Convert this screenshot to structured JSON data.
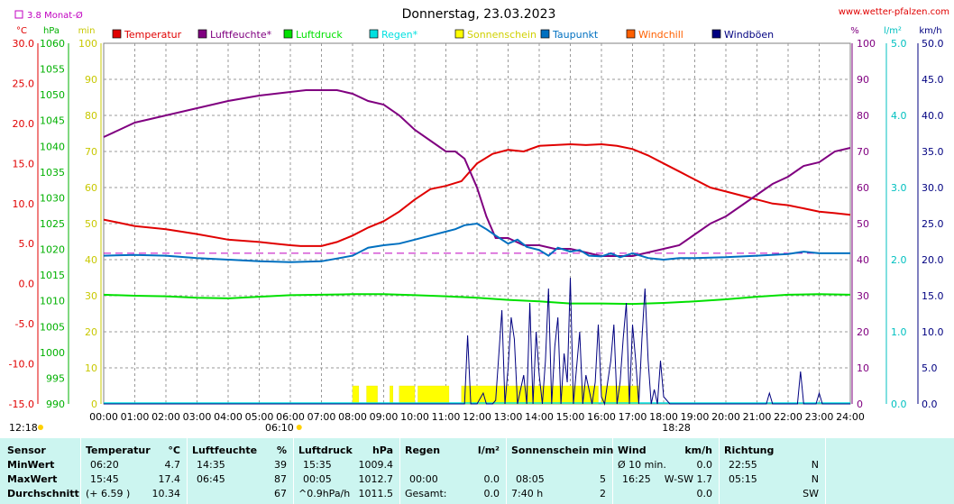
{
  "header": {
    "title": "Donnerstag, 23.03.2023",
    "site": "www.wetter-pfalzen.com",
    "monat_label": "3.8 Monat-Ø"
  },
  "units": {
    "temp": "°C",
    "pressure": "hPa",
    "minutes": "min",
    "percent": "%",
    "rain": "l/m²",
    "wind": "km/h"
  },
  "legend": [
    {
      "label": "Temperatur",
      "color": "#e00000"
    },
    {
      "label": "Luftfeuchte*",
      "color": "#800080"
    },
    {
      "label": "Luftdruck",
      "color": "#00e000"
    },
    {
      "label": "Regen*",
      "color": "#00e0e0"
    },
    {
      "label": "Sonnenschein",
      "color": "#ffff00"
    },
    {
      "label": "Taupunkt",
      "color": "#0070c0"
    },
    {
      "label": "Windchill",
      "color": "#ff6000"
    },
    {
      "label": "Windböen",
      "color": "#000080"
    }
  ],
  "chart_data": {
    "type": "line",
    "title": "Donnerstag, 23.03.2023",
    "x_ticks": [
      "00:00",
      "01:00",
      "02:00",
      "03:00",
      "04:00",
      "05:00",
      "06:00",
      "07:00",
      "08:00",
      "09:00",
      "10:00",
      "11:00",
      "12:00",
      "13:00",
      "14:00",
      "15:00",
      "16:00",
      "17:00",
      "18:00",
      "19:00",
      "20:00",
      "21:00",
      "22:00",
      "23:00",
      "24:00"
    ],
    "axes": {
      "temp": {
        "unit": "°C",
        "range": [
          -15,
          30
        ],
        "ticks": [
          "30.0",
          "25.0",
          "20.0",
          "15.0",
          "10.0",
          "5.0",
          "0.0",
          "-5.0",
          "-10.0",
          "-15.0"
        ]
      },
      "pressure": {
        "unit": "hPa",
        "range": [
          990,
          1060
        ],
        "ticks": [
          "1060",
          "1055",
          "1050",
          "1045",
          "1040",
          "1035",
          "1030",
          "1025",
          "1020",
          "1015",
          "1010",
          "1005",
          "1000",
          "995",
          "990"
        ]
      },
      "sun_minutes": {
        "unit": "min",
        "range": [
          0,
          100
        ],
        "ticks": [
          "100",
          "90",
          "80",
          "70",
          "60",
          "50",
          "40",
          "30",
          "20",
          "10",
          "0"
        ]
      },
      "humidity": {
        "unit": "%",
        "range": [
          0,
          100
        ],
        "ticks": [
          "100",
          "90",
          "80",
          "70",
          "60",
          "50",
          "40",
          "30",
          "20",
          "10",
          "0"
        ]
      },
      "rain": {
        "unit": "l/m²",
        "range": [
          0,
          5
        ],
        "ticks": [
          "5.0",
          "4.0",
          "3.0",
          "2.0",
          "1.0",
          "0.0"
        ]
      },
      "wind": {
        "unit": "km/h",
        "range": [
          0,
          50
        ],
        "ticks": [
          "50.0",
          "45.0",
          "40.0",
          "35.0",
          "30.0",
          "25.0",
          "20.0",
          "15.0",
          "10.0",
          "5.0",
          "0.0"
        ]
      }
    },
    "monthly_avg_temp": 3.8,
    "sunrise": "06:10",
    "sunset": "18:28",
    "local_time": "12:18",
    "series": [
      {
        "name": "Temperatur",
        "axis": "temp",
        "color": "#e00000",
        "x": [
          0,
          0.5,
          1,
          2,
          3,
          4,
          5,
          5.5,
          6,
          6.33,
          7,
          7.5,
          8,
          8.5,
          9,
          9.5,
          10,
          10.5,
          11,
          11.5,
          12,
          12.5,
          13,
          13.5,
          14,
          14.5,
          15,
          15.5,
          16,
          16.5,
          17,
          17.5,
          18,
          18.5,
          19,
          19.5,
          20,
          20.5,
          21,
          21.5,
          22,
          22.5,
          23,
          23.5,
          24
        ],
        "y": [
          8.0,
          7.6,
          7.2,
          6.8,
          6.2,
          5.5,
          5.2,
          5.0,
          4.8,
          4.7,
          4.7,
          5.2,
          6.0,
          7.0,
          7.8,
          9.0,
          10.5,
          11.8,
          12.2,
          12.8,
          15.0,
          16.2,
          16.7,
          16.5,
          17.2,
          17.3,
          17.4,
          17.3,
          17.4,
          17.2,
          16.8,
          16.0,
          15.0,
          14.0,
          13.0,
          12.0,
          11.5,
          11.0,
          10.5,
          10.0,
          9.8,
          9.4,
          9.0,
          8.8,
          8.6
        ]
      },
      {
        "name": "Luftfeuchte*",
        "axis": "humidity",
        "color": "#800080",
        "x": [
          0,
          0.5,
          1,
          1.5,
          2,
          3,
          4,
          5,
          5.5,
          6,
          6.5,
          7,
          7.5,
          8,
          8.5,
          9,
          9.5,
          10,
          10.5,
          11,
          11.3,
          11.6,
          12,
          12.3,
          12.6,
          13,
          13.5,
          14,
          14.5,
          15,
          15.5,
          16,
          16.5,
          17,
          17.5,
          18,
          18.5,
          19,
          19.5,
          20,
          20.5,
          21,
          21.5,
          22,
          22.5,
          23,
          23.5,
          24
        ],
        "y": [
          74,
          76,
          78,
          79,
          80,
          82,
          84,
          85.5,
          86,
          86.5,
          87,
          87,
          87,
          86,
          84,
          83,
          80,
          76,
          73,
          70,
          70,
          68,
          60,
          52,
          46,
          46,
          44,
          44,
          43,
          43,
          42,
          41,
          41,
          41,
          42,
          43,
          44,
          47,
          50,
          52,
          55,
          58,
          61,
          63,
          66,
          67,
          70,
          71
        ]
      },
      {
        "name": "Luftdruck",
        "axis": "pressure",
        "color": "#00e000",
        "x": [
          0,
          1,
          2,
          3,
          4,
          5,
          6,
          7,
          8,
          9,
          10,
          11,
          12,
          13,
          14,
          15,
          16,
          17,
          18,
          19,
          20,
          21,
          22,
          23,
          24
        ],
        "y": [
          1011.2,
          1011.0,
          1010.9,
          1010.6,
          1010.5,
          1010.8,
          1011.1,
          1011.2,
          1011.3,
          1011.3,
          1011.1,
          1010.9,
          1010.6,
          1010.2,
          1009.9,
          1009.5,
          1009.5,
          1009.4,
          1009.6,
          1009.9,
          1010.3,
          1010.8,
          1011.2,
          1011.3,
          1011.2
        ]
      },
      {
        "name": "Taupunkt",
        "axis": "temp",
        "color": "#0070c0",
        "x": [
          0,
          1,
          2,
          3,
          4,
          5,
          6,
          7,
          8,
          8.5,
          9,
          9.5,
          10,
          10.5,
          11,
          11.3,
          11.6,
          12,
          12.3,
          12.6,
          13,
          13.3,
          13.6,
          14,
          14.3,
          14.6,
          15,
          15.3,
          15.6,
          16,
          16.3,
          16.6,
          17,
          17.5,
          18,
          18.5,
          19,
          20,
          21,
          22,
          22.5,
          23,
          24
        ],
        "y": [
          3.5,
          3.6,
          3.5,
          3.2,
          3.0,
          2.8,
          2.7,
          2.8,
          3.5,
          4.5,
          4.8,
          5.0,
          5.5,
          6.0,
          6.5,
          6.8,
          7.3,
          7.5,
          6.8,
          6.0,
          5.0,
          5.5,
          4.6,
          4.2,
          3.5,
          4.5,
          4.0,
          4.2,
          3.5,
          3.4,
          3.8,
          3.3,
          3.8,
          3.2,
          3.0,
          3.2,
          3.2,
          3.3,
          3.5,
          3.7,
          4.0,
          3.8,
          3.8
        ]
      },
      {
        "name": "Windböen",
        "axis": "wind",
        "color": "#000080",
        "x": [
          0,
          11.6,
          11.7,
          11.8,
          12.0,
          12.2,
          12.3,
          12.5,
          12.6,
          12.8,
          12.9,
          13.0,
          13.1,
          13.2,
          13.3,
          13.4,
          13.5,
          13.6,
          13.7,
          13.8,
          13.9,
          14.0,
          14.1,
          14.2,
          14.3,
          14.4,
          14.5,
          14.6,
          14.7,
          14.8,
          14.9,
          15.0,
          15.1,
          15.2,
          15.3,
          15.4,
          15.5,
          15.6,
          15.7,
          15.8,
          15.9,
          16.0,
          16.1,
          16.2,
          16.3,
          16.4,
          16.5,
          16.6,
          16.7,
          16.8,
          16.9,
          17.0,
          17.1,
          17.2,
          17.3,
          17.4,
          17.5,
          17.6,
          17.7,
          17.8,
          17.9,
          18.0,
          18.2,
          20.5,
          21.3,
          21.4,
          21.5,
          21.6,
          22.2,
          22.3,
          22.4,
          22.5,
          22.6,
          22.8,
          22.9,
          23.0,
          23.1,
          23.2,
          24
        ],
        "y": [
          0,
          0,
          9.5,
          0,
          0,
          1.5,
          0,
          0,
          0.5,
          13,
          0,
          5,
          12,
          9,
          0,
          2,
          4,
          0,
          14,
          0,
          10,
          4,
          0,
          6,
          16,
          0,
          8,
          12,
          0,
          7,
          3,
          17.5,
          0,
          5,
          10,
          0,
          4,
          2,
          0,
          3,
          11,
          1,
          0,
          3,
          6,
          11,
          0,
          3,
          9,
          14,
          0,
          11,
          6,
          0,
          9,
          16,
          6,
          0,
          2,
          0,
          6,
          1,
          0,
          0,
          0,
          1.5,
          0,
          0,
          0,
          0,
          4.5,
          0,
          0,
          0,
          0,
          1.5,
          0,
          0,
          0
        ]
      }
    ],
    "sun_bars_minutes": [
      {
        "start": 8.0,
        "end": 8.2,
        "minutes": 5
      },
      {
        "start": 8.45,
        "end": 8.8,
        "minutes": 5
      },
      {
        "start": 9.2,
        "end": 9.3,
        "minutes": 5
      },
      {
        "start": 9.5,
        "end": 10.0,
        "minutes": 5
      },
      {
        "start": 10.1,
        "end": 11.1,
        "minutes": 5
      },
      {
        "start": 11.5,
        "end": 15.9,
        "minutes": 5
      },
      {
        "start": 16.0,
        "end": 17.2,
        "minutes": 5
      }
    ],
    "rain_values": [
      0
    ]
  },
  "table": {
    "columns": [
      {
        "header": "Sensor",
        "unit": ""
      },
      {
        "header": "Temperatur",
        "unit": "°C"
      },
      {
        "header": "Luftfeuchte",
        "unit": "%"
      },
      {
        "header": "Luftdruck",
        "unit": "hPa"
      },
      {
        "header": "Regen",
        "unit": "l/m²"
      },
      {
        "header": "Sonnenschein min",
        "unit": ""
      },
      {
        "header": "Wind",
        "unit": "km/h"
      },
      {
        "header": "Richtung",
        "unit": ""
      }
    ],
    "rows": [
      {
        "label": "MinWert",
        "temp_time": "06:20",
        "temp_val": "4.7",
        "hum_time": "14:35",
        "hum_val": "39",
        "press_time": "15:35",
        "press_val": "1009.4",
        "rain_time": "",
        "rain_val": "",
        "sun_time": "",
        "sun_val": "",
        "wind_time": "Ø 10 min.",
        "wind_val": "0.0",
        "dir_time": "22:55",
        "dir_val": "N"
      },
      {
        "label": "MaxWert",
        "temp_time": "15:45",
        "temp_val": "17.4",
        "hum_time": "06:45",
        "hum_val": "87",
        "press_time": "00:05",
        "press_val": "1012.7",
        "rain_time": "00:00",
        "rain_val": "0.0",
        "sun_time": "08:05",
        "sun_val": "5",
        "wind_time": "16:25",
        "wind_val": "W-SW 1.7",
        "dir_time": "05:15",
        "dir_val": "N"
      },
      {
        "label": "Durchschnitt",
        "temp_time": "(+ 6.59 )",
        "temp_val": "10.34",
        "hum_time": "",
        "hum_val": "67",
        "press_time": "^0.9hPa/h",
        "press_val": "1011.5",
        "rain_time": "Gesamt:",
        "rain_val": "0.0",
        "sun_time": "7:40 h",
        "sun_val": "2",
        "wind_time": "",
        "wind_val": "0.0",
        "dir_time": "",
        "dir_val": "SW"
      }
    ]
  }
}
